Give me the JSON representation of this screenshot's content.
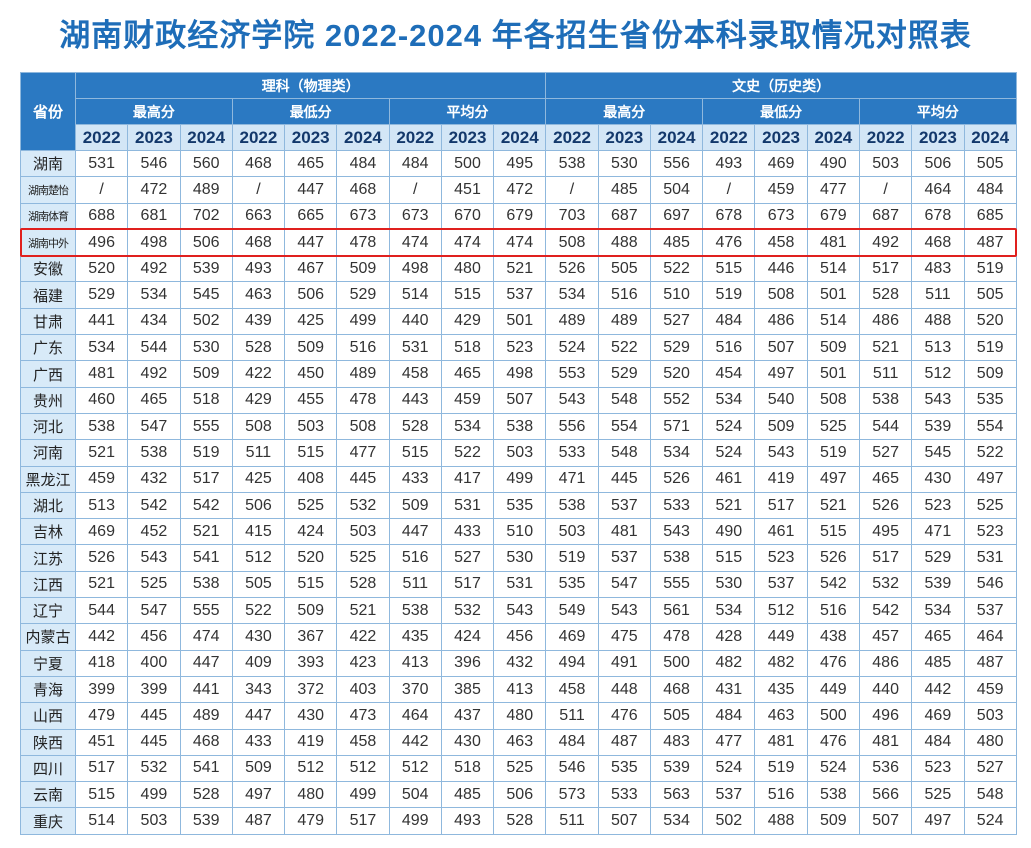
{
  "title": "湖南财政经济学院 2022-2024 年各招生省份本科录取情况对照表",
  "table": {
    "corner": "省份",
    "groups": [
      {
        "label": "理科（物理类）",
        "subgroups": [
          {
            "label": "最高分",
            "years": [
              "2022",
              "2023",
              "2024"
            ]
          },
          {
            "label": "最低分",
            "years": [
              "2022",
              "2023",
              "2024"
            ]
          },
          {
            "label": "平均分",
            "years": [
              "2022",
              "2023",
              "2024"
            ]
          }
        ]
      },
      {
        "label": "文史（历史类）",
        "subgroups": [
          {
            "label": "最高分",
            "years": [
              "2022",
              "2023",
              "2024"
            ]
          },
          {
            "label": "最低分",
            "years": [
              "2022",
              "2023",
              "2024"
            ]
          },
          {
            "label": "平均分",
            "years": [
              "2022",
              "2023",
              "2024"
            ]
          }
        ]
      }
    ],
    "rows": [
      {
        "province": "湖南",
        "values": [
          531,
          546,
          560,
          468,
          465,
          484,
          484,
          500,
          495,
          538,
          530,
          556,
          493,
          469,
          490,
          503,
          506,
          505
        ]
      },
      {
        "province": "湖南楚怡",
        "values": [
          "/",
          472,
          489,
          "/",
          447,
          468,
          "/",
          451,
          472,
          "/",
          485,
          504,
          "/",
          459,
          477,
          "/",
          464,
          484
        ]
      },
      {
        "province": "湖南体育",
        "values": [
          688,
          681,
          702,
          663,
          665,
          673,
          673,
          670,
          679,
          703,
          687,
          697,
          678,
          673,
          679,
          687,
          678,
          685
        ]
      },
      {
        "province": "湖南中外",
        "values": [
          496,
          498,
          506,
          468,
          447,
          478,
          474,
          474,
          474,
          508,
          488,
          485,
          476,
          458,
          481,
          492,
          468,
          487
        ]
      },
      {
        "province": "安徽",
        "values": [
          520,
          492,
          539,
          493,
          467,
          509,
          498,
          480,
          521,
          526,
          505,
          522,
          515,
          446,
          514,
          517,
          483,
          519
        ]
      },
      {
        "province": "福建",
        "values": [
          529,
          534,
          545,
          463,
          506,
          529,
          514,
          515,
          537,
          534,
          516,
          510,
          519,
          508,
          501,
          528,
          511,
          505
        ]
      },
      {
        "province": "甘肃",
        "values": [
          441,
          434,
          502,
          439,
          425,
          499,
          440,
          429,
          501,
          489,
          489,
          527,
          484,
          486,
          514,
          486,
          488,
          520
        ]
      },
      {
        "province": "广东",
        "values": [
          534,
          544,
          530,
          528,
          509,
          516,
          531,
          518,
          523,
          524,
          522,
          529,
          516,
          507,
          509,
          521,
          513,
          519
        ]
      },
      {
        "province": "广西",
        "values": [
          481,
          492,
          509,
          422,
          450,
          489,
          458,
          465,
          498,
          553,
          529,
          520,
          454,
          497,
          501,
          511,
          512,
          509
        ]
      },
      {
        "province": "贵州",
        "values": [
          460,
          465,
          518,
          429,
          455,
          478,
          443,
          459,
          507,
          543,
          548,
          552,
          534,
          540,
          508,
          538,
          543,
          535
        ]
      },
      {
        "province": "河北",
        "values": [
          538,
          547,
          555,
          508,
          503,
          508,
          528,
          534,
          538,
          556,
          554,
          571,
          524,
          509,
          525,
          544,
          539,
          554
        ]
      },
      {
        "province": "河南",
        "values": [
          521,
          538,
          519,
          511,
          515,
          477,
          515,
          522,
          503,
          533,
          548,
          534,
          524,
          543,
          519,
          527,
          545,
          522
        ]
      },
      {
        "province": "黑龙江",
        "values": [
          459,
          432,
          517,
          425,
          408,
          445,
          433,
          417,
          499,
          471,
          445,
          526,
          461,
          419,
          497,
          465,
          430,
          497
        ]
      },
      {
        "province": "湖北",
        "values": [
          513,
          542,
          542,
          506,
          525,
          532,
          509,
          531,
          535,
          538,
          537,
          533,
          521,
          517,
          521,
          526,
          523,
          525
        ]
      },
      {
        "province": "吉林",
        "values": [
          469,
          452,
          521,
          415,
          424,
          503,
          447,
          433,
          510,
          503,
          481,
          543,
          490,
          461,
          515,
          495,
          471,
          523
        ]
      },
      {
        "province": "江苏",
        "values": [
          526,
          543,
          541,
          512,
          520,
          525,
          516,
          527,
          530,
          519,
          537,
          538,
          515,
          523,
          526,
          517,
          529,
          531
        ]
      },
      {
        "province": "江西",
        "values": [
          521,
          525,
          538,
          505,
          515,
          528,
          511,
          517,
          531,
          535,
          547,
          555,
          530,
          537,
          542,
          532,
          539,
          546
        ]
      },
      {
        "province": "辽宁",
        "values": [
          544,
          547,
          555,
          522,
          509,
          521,
          538,
          532,
          543,
          549,
          543,
          561,
          534,
          512,
          516,
          542,
          534,
          537
        ]
      },
      {
        "province": "内蒙古",
        "values": [
          442,
          456,
          474,
          430,
          367,
          422,
          435,
          424,
          456,
          469,
          475,
          478,
          428,
          449,
          438,
          457,
          465,
          464
        ]
      },
      {
        "province": "宁夏",
        "values": [
          418,
          400,
          447,
          409,
          393,
          423,
          413,
          396,
          432,
          494,
          491,
          500,
          482,
          482,
          476,
          486,
          485,
          487
        ]
      },
      {
        "province": "青海",
        "values": [
          399,
          399,
          441,
          343,
          372,
          403,
          370,
          385,
          413,
          458,
          448,
          468,
          431,
          435,
          449,
          440,
          442,
          459
        ]
      },
      {
        "province": "山西",
        "values": [
          479,
          445,
          489,
          447,
          430,
          473,
          464,
          437,
          480,
          511,
          476,
          505,
          484,
          463,
          500,
          496,
          469,
          503
        ]
      },
      {
        "province": "陕西",
        "values": [
          451,
          445,
          468,
          433,
          419,
          458,
          442,
          430,
          463,
          484,
          487,
          483,
          477,
          481,
          476,
          481,
          484,
          480
        ]
      },
      {
        "province": "四川",
        "values": [
          517,
          532,
          541,
          509,
          512,
          512,
          512,
          518,
          525,
          546,
          535,
          539,
          524,
          519,
          524,
          536,
          523,
          527
        ]
      },
      {
        "province": "云南",
        "values": [
          515,
          499,
          528,
          497,
          480,
          499,
          504,
          485,
          506,
          573,
          533,
          563,
          537,
          516,
          538,
          566,
          525,
          548
        ]
      },
      {
        "province": "重庆",
        "values": [
          514,
          503,
          539,
          487,
          479,
          517,
          499,
          493,
          528,
          511,
          507,
          534,
          502,
          488,
          509,
          507,
          497,
          524
        ]
      }
    ]
  }
}
